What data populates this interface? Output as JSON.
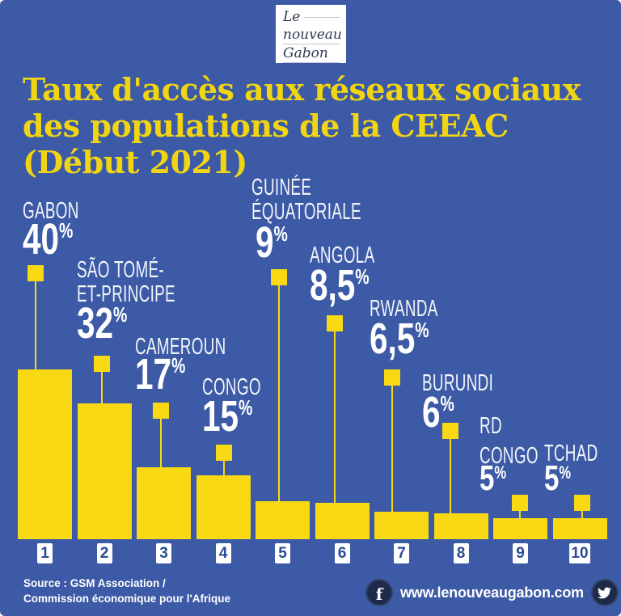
{
  "colors": {
    "background": "#3c5aa5",
    "bar_yellow": "#f8d914",
    "title_yellow": "#f1d513",
    "label_white": "#f2f5fa",
    "rank_number_blue": "#2a4a94",
    "social_circle_navy": "#1d2a4a",
    "logo_text": "#2f3950"
  },
  "logo": {
    "lines": [
      "Le",
      "nouveau",
      "Gabon"
    ]
  },
  "title": {
    "lines": [
      "Taux d'accès aux réseaux sociaux",
      "des populations de la CEEAC",
      "(Début 2021)"
    ]
  },
  "chart_data": {
    "type": "bar",
    "title": "Taux d'accès aux réseaux sociaux des populations de la CEEAC (Début 2021)",
    "unit": "%",
    "percent_sign": "%",
    "ylim": [
      0,
      40
    ],
    "grid": false,
    "legend": "none",
    "categories": [
      "Gabon",
      "São Tomé-et-Principe",
      "Cameroun",
      "Congo",
      "Guinée équatoriale",
      "Angola",
      "Rwanda",
      "Burundi",
      "RD Congo",
      "Tchad"
    ],
    "values": [
      40,
      32,
      17,
      15,
      9,
      8.5,
      6.5,
      6,
      5,
      5
    ],
    "items": [
      {
        "rank": "1",
        "name_lines": [
          "GABON"
        ],
        "value": 40,
        "value_label": "40"
      },
      {
        "rank": "2",
        "name_lines": [
          "SÃO TOMÉ-",
          "ET-PRINCIPE"
        ],
        "value": 32,
        "value_label": "32"
      },
      {
        "rank": "3",
        "name_lines": [
          "CAMEROUN"
        ],
        "value": 17,
        "value_label": "17"
      },
      {
        "rank": "4",
        "name_lines": [
          "CONGO"
        ],
        "value": 15,
        "value_label": "15"
      },
      {
        "rank": "5",
        "name_lines": [
          "GUINÉE",
          "ÉQUATORIALE"
        ],
        "value": 9,
        "value_label": "9"
      },
      {
        "rank": "6",
        "name_lines": [
          "ANGOLA"
        ],
        "value": 8.5,
        "value_label": "8,5"
      },
      {
        "rank": "7",
        "name_lines": [
          "RWANDA"
        ],
        "value": 6.5,
        "value_label": "6,5"
      },
      {
        "rank": "8",
        "name_lines": [
          "BURUNDI"
        ],
        "value": 6,
        "value_label": "6"
      },
      {
        "rank": "9",
        "name_lines": [
          "RD",
          "CONGO"
        ],
        "value": 5,
        "value_label": "5"
      },
      {
        "rank": "10",
        "name_lines": [
          "TCHAD"
        ],
        "value": 5,
        "value_label": "5"
      }
    ]
  },
  "footer": {
    "source_lines": [
      "Source : GSM Association /",
      "Commission économique pour l'Afrique"
    ],
    "website": "www.lenouveaugabon.com",
    "icons": [
      "facebook-icon",
      "twitter-icon"
    ]
  }
}
